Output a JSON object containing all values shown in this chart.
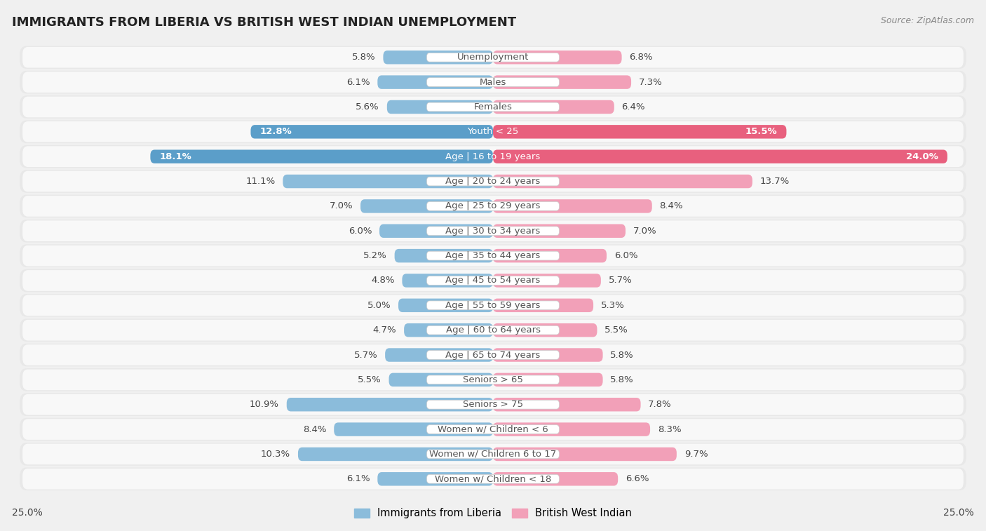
{
  "title": "IMMIGRANTS FROM LIBERIA VS BRITISH WEST INDIAN UNEMPLOYMENT",
  "source": "Source: ZipAtlas.com",
  "categories": [
    "Unemployment",
    "Males",
    "Females",
    "Youth < 25",
    "Age | 16 to 19 years",
    "Age | 20 to 24 years",
    "Age | 25 to 29 years",
    "Age | 30 to 34 years",
    "Age | 35 to 44 years",
    "Age | 45 to 54 years",
    "Age | 55 to 59 years",
    "Age | 60 to 64 years",
    "Age | 65 to 74 years",
    "Seniors > 65",
    "Seniors > 75",
    "Women w/ Children < 6",
    "Women w/ Children 6 to 17",
    "Women w/ Children < 18"
  ],
  "liberia": [
    5.8,
    6.1,
    5.6,
    12.8,
    18.1,
    11.1,
    7.0,
    6.0,
    5.2,
    4.8,
    5.0,
    4.7,
    5.7,
    5.5,
    10.9,
    8.4,
    10.3,
    6.1
  ],
  "bwi": [
    6.8,
    7.3,
    6.4,
    15.5,
    24.0,
    13.7,
    8.4,
    7.0,
    6.0,
    5.7,
    5.3,
    5.5,
    5.8,
    5.8,
    7.8,
    8.3,
    9.7,
    6.6
  ],
  "liberia_color": "#8bbcdb",
  "liberia_highlight_color": "#5b9ec9",
  "bwi_color": "#f2a0b8",
  "bwi_highlight_color": "#e8607e",
  "highlight_rows": [
    3,
    4
  ],
  "axis_max": 25.0,
  "bg_color": "#f0f0f0",
  "row_bg_color": "#e8e8e8",
  "row_inner_color": "#f8f8f8",
  "legend_liberia": "Immigrants from Liberia",
  "legend_bwi": "British West Indian",
  "label_fontsize": 9.5,
  "value_fontsize": 9.5,
  "title_fontsize": 13
}
